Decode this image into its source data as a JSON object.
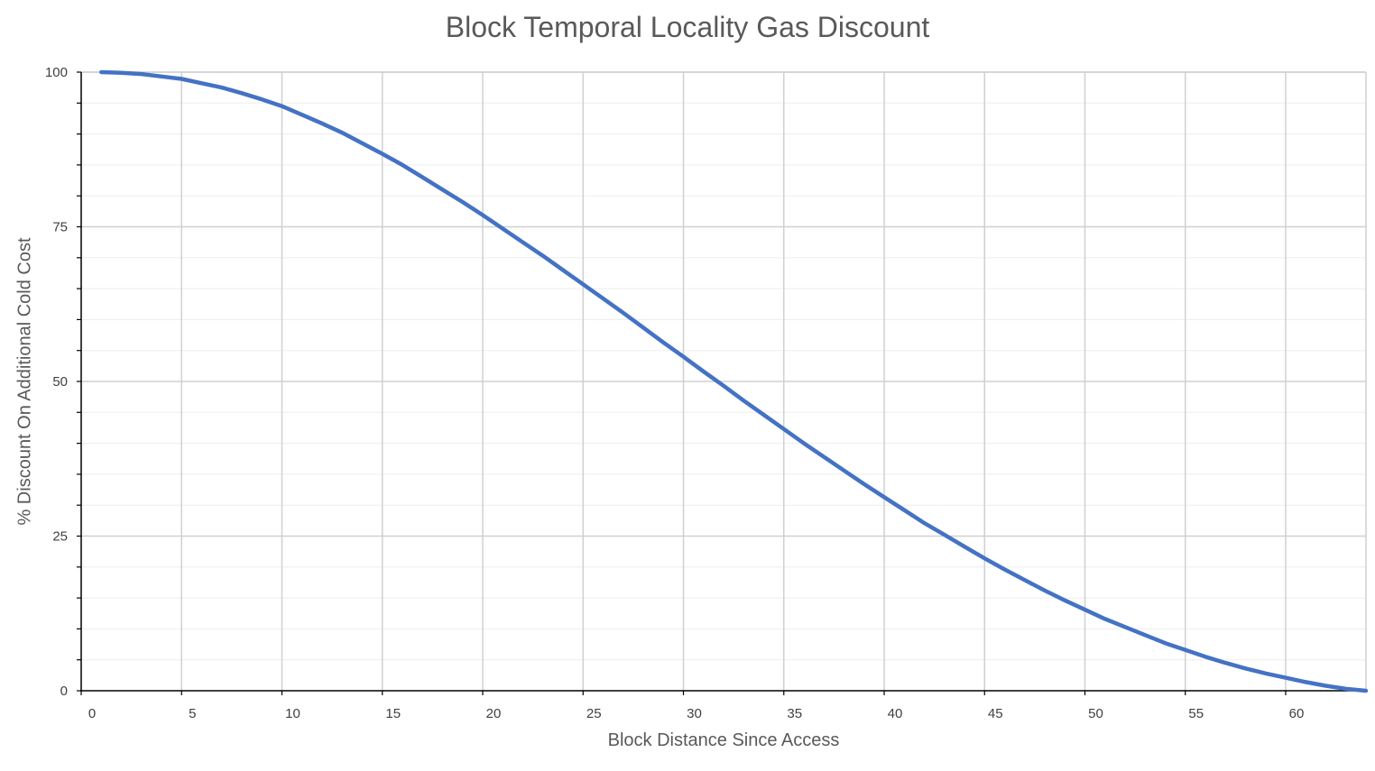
{
  "chart_data": {
    "type": "line",
    "title": "Block Temporal Locality Gas Discount",
    "xlabel": "Block Distance Since Access",
    "ylabel": "% Discount On Additional Cold Cost",
    "xlim": [
      0,
      64
    ],
    "ylim": [
      0,
      100
    ],
    "x_ticks": [
      "0",
      "5",
      "10",
      "15",
      "20",
      "25",
      "30",
      "35",
      "40",
      "45",
      "50",
      "55",
      "60"
    ],
    "y_ticks": [
      "0",
      "25",
      "50",
      "75",
      "100"
    ],
    "grid": true,
    "legend": "none",
    "series": [
      {
        "color": "#4472c4",
        "x": [
          1,
          2,
          3,
          4,
          5,
          6,
          7,
          8,
          9,
          10,
          11,
          12,
          13,
          14,
          15,
          16,
          17,
          18,
          19,
          20,
          21,
          22,
          23,
          24,
          25,
          26,
          27,
          28,
          29,
          30,
          31,
          32,
          33,
          34,
          35,
          36,
          37,
          38,
          39,
          40,
          41,
          42,
          43,
          44,
          45,
          46,
          47,
          48,
          49,
          50,
          51,
          52,
          53,
          54,
          55,
          56,
          57,
          58,
          59,
          60,
          61,
          62,
          63,
          64
        ],
        "values": [
          100,
          99.9,
          99.7,
          99.3,
          98.9,
          98.2,
          97.5,
          96.6,
          95.6,
          94.5,
          93.1,
          91.7,
          90.2,
          88.5,
          86.8,
          85.0,
          83.0,
          81.0,
          79.0,
          76.9,
          74.7,
          72.5,
          70.3,
          68.0,
          65.7,
          63.4,
          61.1,
          58.7,
          56.3,
          54.0,
          51.6,
          49.3,
          46.9,
          44.6,
          42.3,
          40.0,
          37.8,
          35.6,
          33.4,
          31.3,
          29.2,
          27.1,
          25.2,
          23.3,
          21.4,
          19.6,
          17.9,
          16.2,
          14.6,
          13.1,
          11.6,
          10.3,
          9.0,
          7.7,
          6.6,
          5.5,
          4.5,
          3.6,
          2.8,
          2.1,
          1.4,
          0.8,
          0.3,
          0
        ]
      }
    ]
  }
}
